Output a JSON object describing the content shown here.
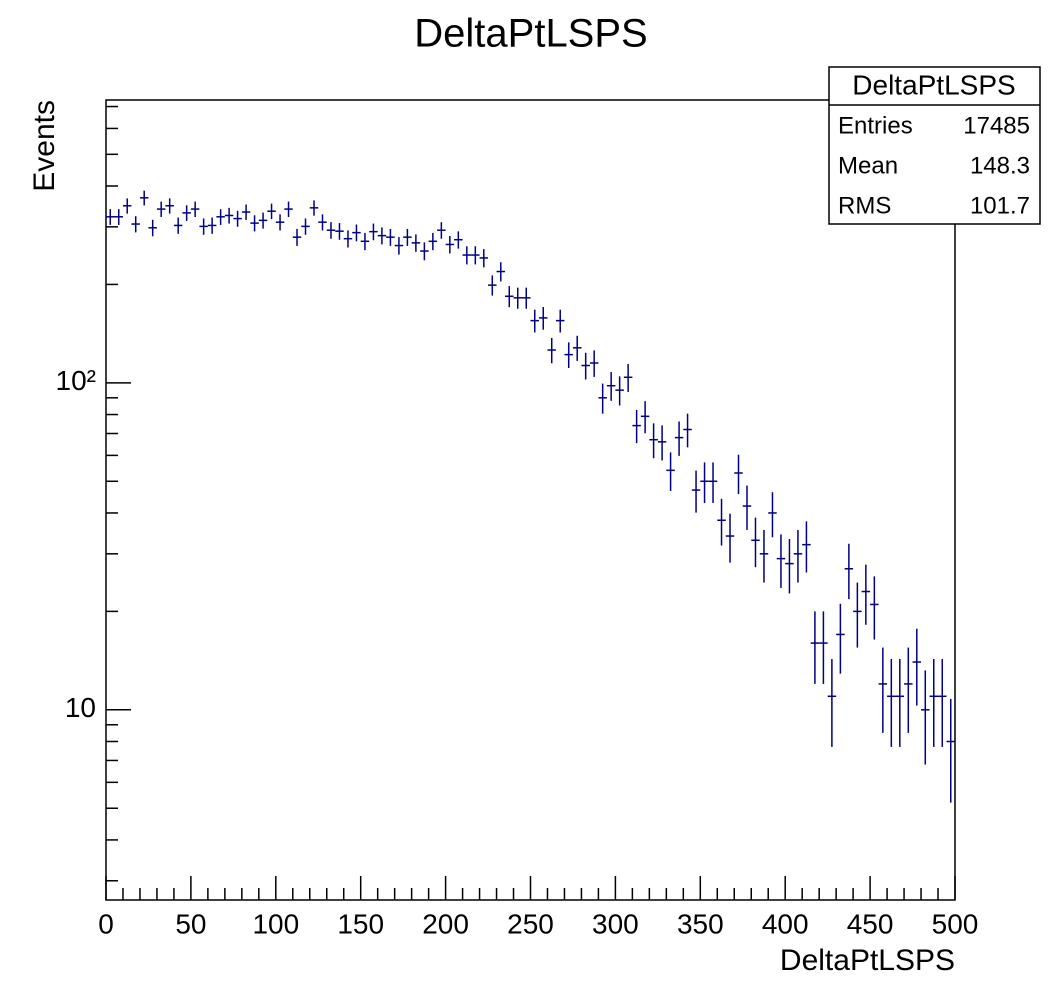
{
  "chart_data": {
    "type": "histogram",
    "title": "DeltaPtLSPS",
    "xlabel": "DeltaPtLSPS",
    "ylabel": "Events",
    "color": "#000080",
    "log_y": true,
    "bins": [
      0,
      5,
      10,
      15,
      20,
      25,
      30,
      35,
      40,
      45,
      50,
      55,
      60,
      65,
      70,
      75,
      80,
      85,
      90,
      95,
      100,
      105,
      110,
      115,
      120,
      125,
      130,
      135,
      140,
      145,
      150,
      155,
      160,
      165,
      170,
      175,
      180,
      185,
      190,
      195,
      200,
      205,
      210,
      215,
      220,
      225,
      230,
      235,
      240,
      245,
      250,
      255,
      260,
      265,
      270,
      275,
      280,
      285,
      290,
      295,
      300,
      305,
      310,
      315,
      320,
      325,
      330,
      335,
      340,
      345,
      350,
      355,
      360,
      365,
      370,
      375,
      380,
      385,
      390,
      395,
      400,
      405,
      410,
      415,
      420,
      425,
      430,
      435,
      440,
      445,
      450,
      455,
      460,
      465,
      470,
      475,
      480,
      485,
      490,
      495,
      500
    ],
    "values": [
      322,
      322,
      348,
      306,
      368,
      298,
      340,
      348,
      303,
      331,
      340,
      301,
      303,
      322,
      325,
      318,
      333,
      308,
      314,
      335,
      310,
      340,
      279,
      301,
      343,
      310,
      293,
      291,
      276,
      288,
      271,
      290,
      282,
      279,
      263,
      279,
      268,
      253,
      271,
      293,
      265,
      274,
      246,
      246,
      241,
      199,
      219,
      184,
      182,
      182,
      155,
      158,
      126,
      155,
      122,
      128,
      113,
      115,
      90,
      98,
      95,
      104,
      74,
      79,
      67,
      66,
      54,
      68,
      72,
      47,
      50,
      50,
      38,
      34,
      53,
      42,
      33,
      30,
      40,
      29,
      28,
      30,
      32,
      16,
      16,
      11,
      17,
      27,
      20,
      23,
      21,
      12,
      11,
      11,
      12,
      14,
      10,
      11,
      11,
      8
    ],
    "errors": [
      17.9,
      17.9,
      18.7,
      17.5,
      19.2,
      17.3,
      18.4,
      18.7,
      17.4,
      18.2,
      18.4,
      17.3,
      17.4,
      17.9,
      18.0,
      17.8,
      18.2,
      17.5,
      17.7,
      18.3,
      17.6,
      18.4,
      16.7,
      17.3,
      18.5,
      17.6,
      17.1,
      17.1,
      16.6,
      17.0,
      16.5,
      17.0,
      16.8,
      16.7,
      16.2,
      16.7,
      16.4,
      15.9,
      16.5,
      17.1,
      16.3,
      16.6,
      15.7,
      15.7,
      15.5,
      14.1,
      14.8,
      13.6,
      13.5,
      13.5,
      12.4,
      12.6,
      11.2,
      12.4,
      11.0,
      11.3,
      10.6,
      10.7,
      9.5,
      9.9,
      9.7,
      10.2,
      8.6,
      8.9,
      8.2,
      8.1,
      7.3,
      8.2,
      8.5,
      6.9,
      7.1,
      7.1,
      6.2,
      5.8,
      7.3,
      6.5,
      5.7,
      5.5,
      6.3,
      5.4,
      5.3,
      5.5,
      5.7,
      4.0,
      4.0,
      3.3,
      4.1,
      5.2,
      4.5,
      4.8,
      4.6,
      3.5,
      3.3,
      3.3,
      3.5,
      3.7,
      3.2,
      3.3,
      3.3,
      2.8
    ],
    "xlim": [
      0,
      500
    ],
    "xticks": [
      0,
      50,
      100,
      150,
      200,
      250,
      300,
      350,
      400,
      450,
      500
    ],
    "xminorticks": [
      10,
      20,
      30,
      40,
      60,
      70,
      80,
      90,
      110,
      120,
      130,
      140,
      160,
      170,
      180,
      190,
      210,
      220,
      230,
      240,
      260,
      270,
      280,
      290,
      310,
      320,
      330,
      340,
      360,
      370,
      380,
      390,
      410,
      420,
      430,
      440,
      460,
      470,
      480,
      490
    ],
    "ylim": [
      2.62,
      733
    ],
    "yticks": [
      10,
      {
        "value": 100,
        "label": "10²"
      }
    ],
    "yminorticks": [
      3,
      4,
      5,
      6,
      7,
      8,
      9,
      20,
      30,
      40,
      50,
      60,
      70,
      80,
      90,
      200,
      300,
      400,
      500,
      600,
      700
    ],
    "stats": {
      "title": "DeltaPtLSPS",
      "rows": [
        [
          "Entries",
          17485
        ],
        [
          "Mean",
          148.3
        ],
        [
          "RMS",
          101.7
        ]
      ]
    }
  }
}
